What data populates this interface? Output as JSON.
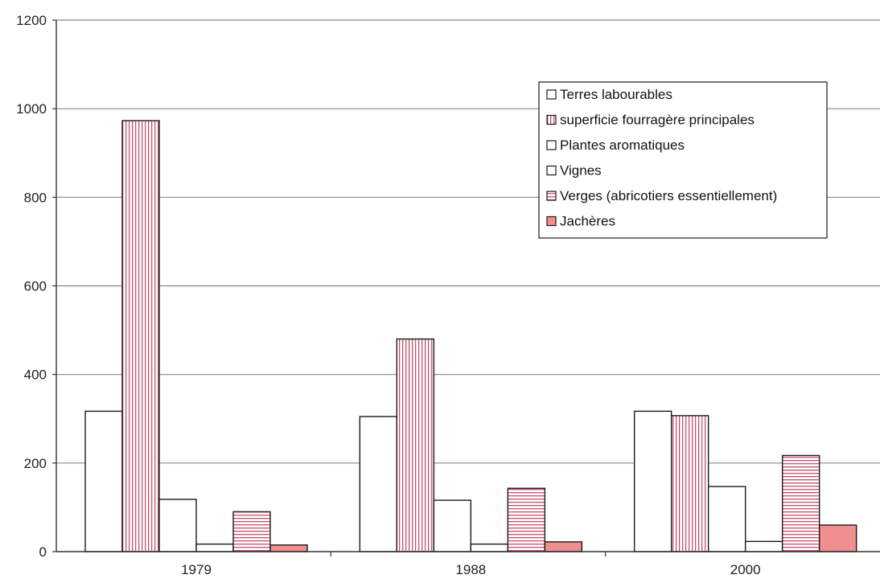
{
  "chart_data": {
    "type": "bar",
    "categories": [
      "1979",
      "1988",
      "2000"
    ],
    "ylim": [
      0,
      1200
    ],
    "yticks": [
      "0",
      "200",
      "400",
      "600",
      "800",
      "1000",
      "1200"
    ],
    "grid": true,
    "legend_position": "top-right",
    "series": [
      {
        "name": "Terres labourables",
        "values": [
          317,
          305,
          317
        ],
        "pattern": "plain",
        "color": "#ffffff"
      },
      {
        "name": "superficie fourragère principales",
        "values": [
          973,
          480,
          307
        ],
        "pattern": "vertical-stripes",
        "color": "#c8506e"
      },
      {
        "name": "Plantes aromatiques",
        "values": [
          118,
          116,
          147
        ],
        "pattern": "plain",
        "color": "#ffffff"
      },
      {
        "name": "Vignes",
        "values": [
          17,
          17,
          23
        ],
        "pattern": "plain",
        "color": "#ffffff"
      },
      {
        "name": "Verges (abricotiers essentiellement)",
        "values": [
          90,
          143,
          217
        ],
        "pattern": "horizontal-stripes",
        "color": "#c8506e"
      },
      {
        "name": "Jachères",
        "values": [
          15,
          22,
          60
        ],
        "pattern": "solid",
        "color": "#ef8f8f"
      }
    ]
  }
}
